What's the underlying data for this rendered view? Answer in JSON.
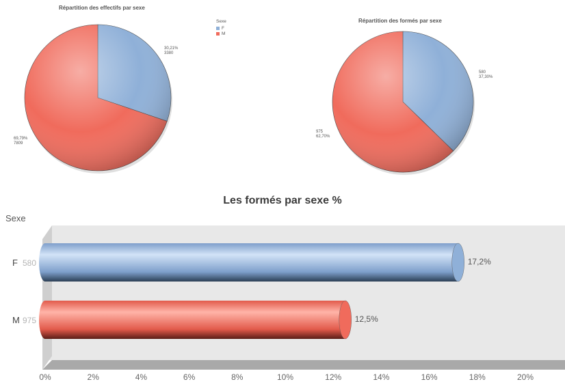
{
  "colors": {
    "F": "#8fb0d8",
    "M": "#f06b5c"
  },
  "chart_data": [
    {
      "type": "pie",
      "title": "Répartition des effectifs par sexe",
      "legend_title": "Sexe",
      "legend_placement": "right",
      "slices": [
        {
          "name": "F",
          "pct_label": "30,21%",
          "count_label": "3380",
          "value": 30.21
        },
        {
          "name": "M",
          "pct_label": "69,79%",
          "count_label": "7809",
          "value": 69.79
        }
      ]
    },
    {
      "type": "pie",
      "title": "Répartition des formés par sexe",
      "slices": [
        {
          "name": "F",
          "pct_label": "37,30%",
          "count_label": "580",
          "value": 37.3
        },
        {
          "name": "M",
          "pct_label": "62,70%",
          "count_label": "975",
          "value": 62.7
        }
      ]
    },
    {
      "type": "bar",
      "orientation": "horizontal",
      "title": "Les formés par sexe %",
      "ylabel": "Sexe",
      "categories": [
        {
          "name": "F",
          "count": "580",
          "value": 17.2,
          "value_label": "17,2%"
        },
        {
          "name": "M",
          "count": "975",
          "value": 12.5,
          "value_label": "12,5%"
        }
      ],
      "xlim": [
        0,
        20
      ],
      "xticks": [
        "0%",
        "2%",
        "4%",
        "6%",
        "8%",
        "10%",
        "12%",
        "14%",
        "16%",
        "18%",
        "20%"
      ]
    }
  ]
}
